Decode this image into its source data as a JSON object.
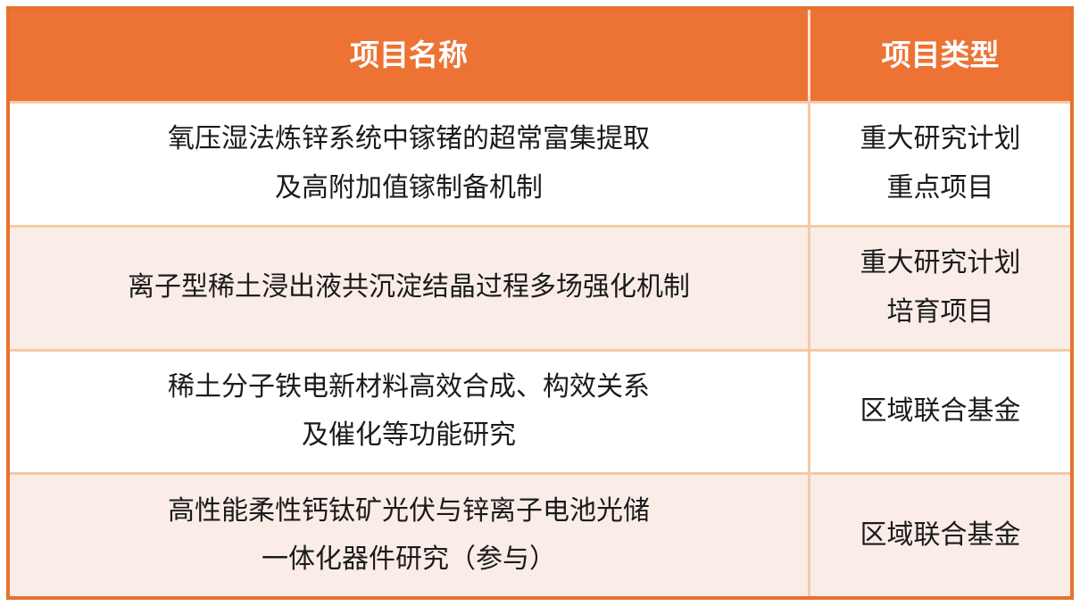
{
  "theme": {
    "header_bg": "#EC7334",
    "header_text": "#FFFFFF",
    "outer_border": "#E8702E",
    "inner_border": "#F5C9A6",
    "header_divider": "#F8E3D3",
    "row_bg": "#FFFFFF",
    "row_alt_bg": "#FAEDE7",
    "body_text": "#1B1B1B"
  },
  "table": {
    "columns": [
      {
        "label": "项目名称"
      },
      {
        "label": "项目类型"
      }
    ],
    "rows": [
      {
        "name": "氧压湿法炼锌系统中镓锗的超常富集提取\n及高附加值镓制备机制",
        "type": "重大研究计划\n重点项目"
      },
      {
        "name": "离子型稀土浸出液共沉淀结晶过程多场强化机制",
        "type": "重大研究计划\n培育项目"
      },
      {
        "name": "稀土分子铁电新材料高效合成、构效关系\n及催化等功能研究",
        "type": "区域联合基金"
      },
      {
        "name": "高性能柔性钙钛矿光伏与锌离子电池光储\n一体化器件研究（参与）",
        "type": "区域联合基金"
      }
    ]
  }
}
